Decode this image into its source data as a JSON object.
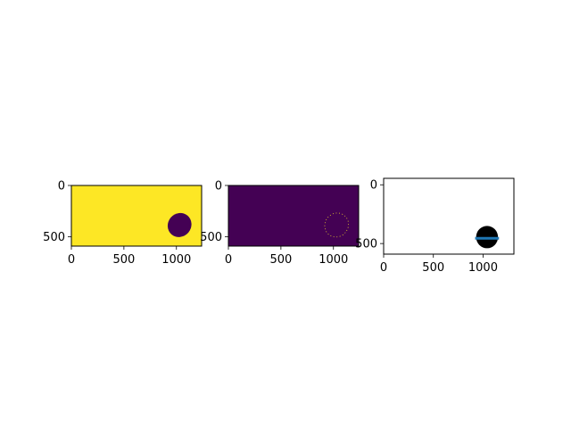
{
  "chart_data": [
    {
      "type": "heatmap",
      "description_kind": "binary mask image",
      "image_size": [
        1240,
        590
      ],
      "xlim": [
        0,
        1240
      ],
      "ylim": [
        590,
        0
      ],
      "xticks": [
        0,
        500,
        1000
      ],
      "yticks": [
        0,
        500
      ],
      "mask_value_background": 1,
      "mask_value_object": 0,
      "object_ellipse": {
        "cx": 1030,
        "cy": 385,
        "rx": 110,
        "ry": 120,
        "rotation_deg": 40
      },
      "colors": {
        "high": "#fde725",
        "low": "#440154"
      }
    },
    {
      "type": "heatmap",
      "description_kind": "edge/boundary image",
      "image_size": [
        1240,
        590
      ],
      "xlim": [
        0,
        1240
      ],
      "ylim": [
        590,
        0
      ],
      "xticks": [
        0,
        500,
        1000
      ],
      "yticks": [
        0,
        500
      ],
      "boundary_ellipse": {
        "cx": 1030,
        "cy": 385,
        "rx": 110,
        "ry": 120,
        "rotation_deg": 40
      },
      "colors": {
        "background": "#440154",
        "edge": "#fde725"
      }
    },
    {
      "type": "scatter",
      "description_kind": "object mask with fitted line",
      "xlim": [
        0,
        1310
      ],
      "ylim": [
        590,
        -55
      ],
      "xticks": [
        0,
        500,
        1000
      ],
      "yticks": [
        0,
        500
      ],
      "object_ellipse": {
        "cx": 1040,
        "cy": 445,
        "rx": 110,
        "ry": 95,
        "rotation_deg": 0
      },
      "line": {
        "x": [
          920,
          1160
        ],
        "y": [
          455,
          455
        ],
        "color": "#1f77b4"
      },
      "colors": {
        "object": "#000000",
        "background": "#ffffff"
      }
    }
  ]
}
